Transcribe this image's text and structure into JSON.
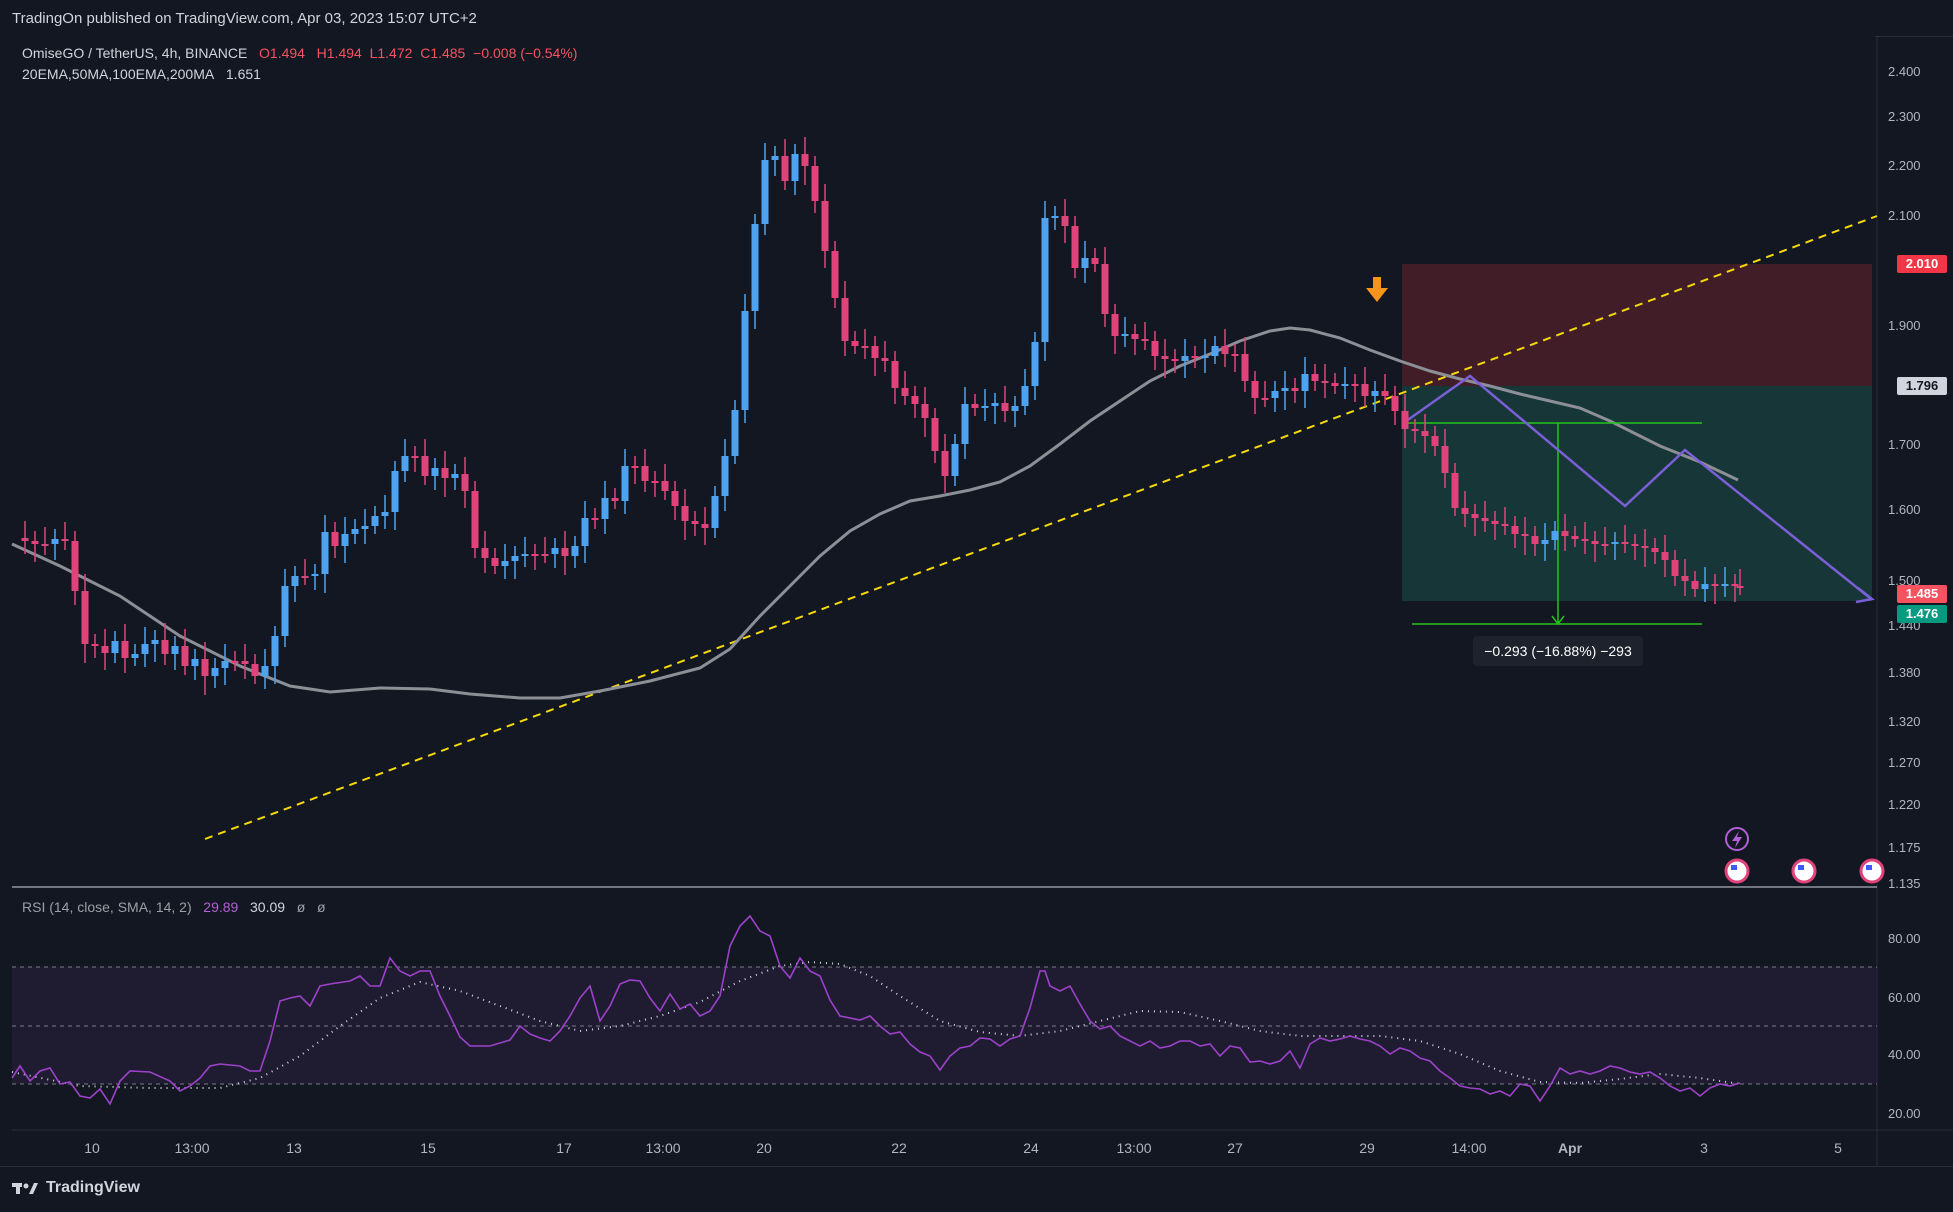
{
  "header": {
    "published": "TradingOn published on TradingView.com, Apr 03, 2023 15:07 UTC+2"
  },
  "legend": {
    "symbol": "OmiseGO / TetherUS, 4h, BINANCE",
    "open": "O1.494",
    "high": "H1.494",
    "low": "L1.472",
    "close": "C1.485",
    "change": "−0.008 (−0.54%)",
    "indicators_label": "20EMA,50MA,100EMA,200MA",
    "indicators_value": "1.651"
  },
  "rsi_legend": {
    "label": "RSI (14, close, SMA, 14, 2)",
    "rsi": "29.89",
    "sma": "30.09",
    "extra1": "ø",
    "extra2": "ø"
  },
  "price_axis": {
    "ticks": [
      "2.400",
      "2.300",
      "2.200",
      "2.100",
      "2.010",
      "1.900",
      "1.796",
      "1.700",
      "1.600",
      "1.500",
      "1.485",
      "1.476",
      "1.440",
      "1.380",
      "1.320",
      "1.270",
      "1.220",
      "1.175",
      "1.135"
    ]
  },
  "price_labels": {
    "stop": "2.010",
    "entry": "1.796",
    "last": "1.485",
    "target": "1.476"
  },
  "rsi_axis": {
    "ticks": [
      "80.00",
      "60.00",
      "40.00",
      "20.00"
    ]
  },
  "time_axis": {
    "ticks": [
      "10",
      "13:00",
      "13",
      "15",
      "17",
      "13:00",
      "20",
      "22",
      "24",
      "13:00",
      "27",
      "29",
      "14:00",
      "Apr",
      "3",
      "5"
    ]
  },
  "measurement": {
    "text": "−0.293 (−16.88%) −293"
  },
  "footer": {
    "brand": "TradingView"
  },
  "colors": {
    "background": "#131722",
    "up": "#4da3f0",
    "down": "#e0437a",
    "trendline": "#f5d90a",
    "ma": "#8c8f96",
    "rsi": "#9c42c9",
    "stop_zone": "#4a2028",
    "target_zone": "#173a3a",
    "projection": "#7b5fd6",
    "arrow": "#f7941d"
  }
}
